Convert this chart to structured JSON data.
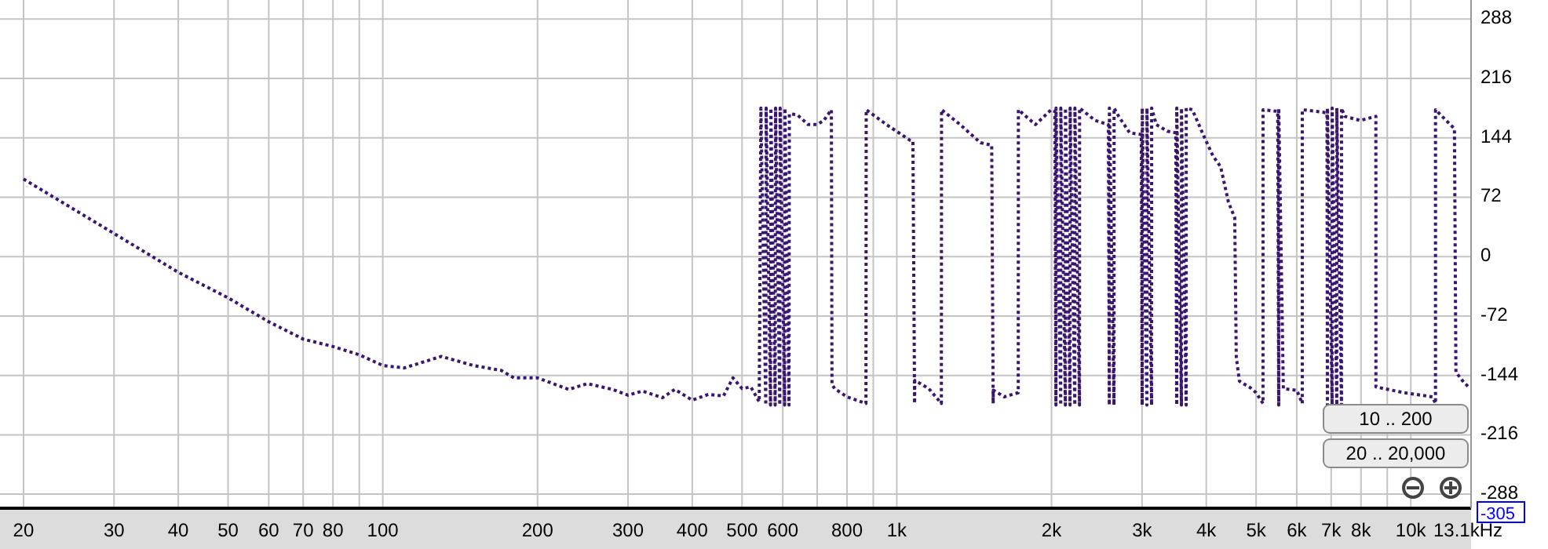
{
  "chart_data": {
    "type": "line",
    "log": "x",
    "grid": true,
    "line_style": "dotted",
    "marker": "none",
    "xlabel": "Hz",
    "x": [
      20,
      30,
      40,
      50,
      60,
      70,
      80,
      90,
      100,
      110,
      130,
      150,
      170,
      180,
      200,
      230,
      250,
      280,
      300,
      320,
      350,
      370,
      400,
      430,
      460,
      480,
      500,
      520,
      540,
      544,
      556,
      557,
      568,
      569,
      580,
      581,
      592,
      593,
      605,
      606,
      617,
      618,
      640,
      672,
      700,
      721,
      746,
      748,
      757,
      800,
      871,
      872,
      955,
      1061,
      1075,
      1083,
      1084,
      1154,
      1221,
      1222,
      1328,
      1455,
      1530,
      1540,
      1541,
      1618,
      1723,
      1724,
      1861,
      1997,
      2030,
      2040,
      2041,
      2084,
      2085,
      2128,
      2129,
      2173,
      2174,
      2220,
      2221,
      2267,
      2268,
      2432,
      2580,
      2591,
      2592,
      2646,
      2647,
      2702,
      2838,
      2990,
      3002,
      3003,
      3066,
      3067,
      3131,
      3132,
      3198,
      3360,
      3490,
      3504,
      3505,
      3579,
      3580,
      3656,
      3657,
      3759,
      3951,
      4121,
      4266,
      4418,
      4544,
      4576,
      4641,
      4875,
      5000,
      5158,
      5159,
      5510,
      5534,
      5535,
      5650,
      6000,
      6150,
      6151,
      6739,
      6870,
      6883,
      6884,
      7030,
      7031,
      7178,
      7179,
      7331,
      7332,
      7435,
      7975,
      8552,
      8553,
      9709,
      11020,
      11170,
      11171,
      12160,
      12240,
      12590,
      13040
    ],
    "series": [
      {
        "color": "#3b1670",
        "values": [
          94,
          28,
          -19,
          -50,
          -79,
          -100,
          -109,
          -119,
          -132,
          -135,
          -121,
          -132,
          -138,
          -147,
          -147,
          -161,
          -154,
          -161,
          -168,
          -163,
          -171,
          -161,
          -174,
          -167,
          -169,
          -147,
          -160,
          -158,
          -176,
          180,
          -180,
          180,
          -180,
          180,
          -180,
          180,
          -180,
          180,
          -180,
          180,
          -180,
          173,
          172,
          160,
          160,
          165,
          178,
          -155,
          -160,
          -170,
          -178,
          178,
          160,
          141,
          140,
          -178,
          -150,
          -160,
          -178,
          178,
          160,
          138,
          135,
          -178,
          -162,
          -170,
          -165,
          178,
          160,
          178,
          176,
          -180,
          180,
          -180,
          180,
          -180,
          180,
          -180,
          180,
          -180,
          180,
          -180,
          180,
          165,
          160,
          -180,
          180,
          -180,
          180,
          170,
          150,
          148,
          -180,
          180,
          -180,
          180,
          -180,
          180,
          160,
          152,
          150,
          -180,
          180,
          -180,
          180,
          -180,
          180,
          178,
          147,
          122,
          109,
          66,
          47,
          -122,
          -151,
          -159,
          -165,
          -178,
          178,
          176,
          -180,
          180,
          -160,
          -162,
          -178,
          178,
          175,
          174,
          -180,
          180,
          -180,
          180,
          -180,
          180,
          -180,
          180,
          170,
          165,
          170,
          -158,
          -165,
          -170,
          -178,
          178,
          155,
          -140,
          -150,
          -160
        ]
      }
    ],
    "xlim": [
      18,
      13100
    ],
    "xticks": [
      20,
      30,
      40,
      50,
      60,
      70,
      80,
      {
        "value": 90,
        "label": null
      },
      100,
      200,
      300,
      400,
      500,
      600,
      {
        "value": 700,
        "label": null
      },
      800,
      {
        "value": 900,
        "label": null
      },
      {
        "value": 1000,
        "label": "1k"
      },
      {
        "value": 2000,
        "label": "2k"
      },
      {
        "value": 3000,
        "label": "3k"
      },
      {
        "value": 4000,
        "label": "4k"
      },
      {
        "value": 5000,
        "label": "5k"
      },
      {
        "value": 6000,
        "label": "6k"
      },
      {
        "value": 7000,
        "label": "7k"
      },
      {
        "value": 8000,
        "label": "8k"
      },
      {
        "value": 9000,
        "label": null
      },
      {
        "value": 10000,
        "label": "10k"
      },
      {
        "value": 13100,
        "label": "13.1k"
      }
    ],
    "ylim": [
      -305,
      311
    ],
    "yticks": [
      288,
      216,
      144,
      72,
      0,
      -72,
      -144,
      -216,
      -288,
      -305
    ],
    "annotations": [
      "10 .. 200",
      "20 .. 20,000"
    ]
  }
}
